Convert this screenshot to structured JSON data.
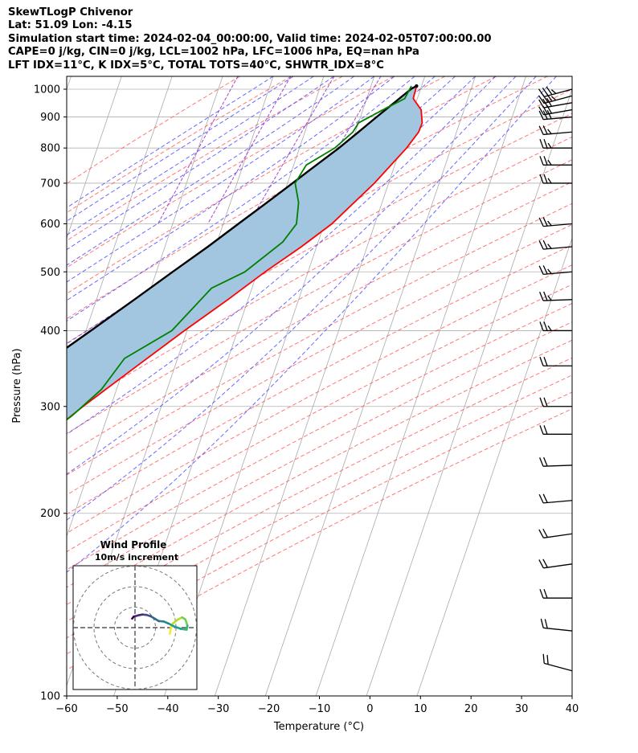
{
  "header": {
    "line1": "SkewTLogP Chivenor",
    "line2": "Lat: 51.09   Lon: -4.15",
    "line3": "Simulation start time: 2024-02-04_00:00:00, Valid time: 2024-02-05T07:00:00.00",
    "line4": "CAPE=0 j/kg, CIN=0 j/kg, LCL=1002 hPa, LFC=1006 hPa, EQ=nan hPa",
    "line5": "LFT IDX=11°C, K IDX=5°C, TOTAL TOTS=40°C, SHWTR_IDX=8°C"
  },
  "chart_data": {
    "type": "line",
    "diagram": "skew-t log-p",
    "xlabel": "Temperature (°C)",
    "ylabel": "Pressure (hPa)",
    "xlim": [
      -60,
      40
    ],
    "ylim": [
      1050,
      100
    ],
    "yscale": "log",
    "x_ticks": [
      -60,
      -50,
      -40,
      -30,
      -20,
      -10,
      0,
      10,
      20,
      30,
      40
    ],
    "x_tick_labels": [
      "−60",
      "−50",
      "−40",
      "−30",
      "−20",
      "−10",
      "0",
      "10",
      "20",
      "30",
      "40"
    ],
    "y_ticks": [
      100,
      200,
      300,
      400,
      500,
      600,
      700,
      800,
      900,
      1000
    ],
    "y_tick_labels": [
      "100",
      "200",
      "300",
      "400",
      "500",
      "600",
      "700",
      "800",
      "900",
      "1000"
    ],
    "colors": {
      "temperature": "#ff0000",
      "dewpoint": "#008000",
      "parcel": "#000000",
      "cape_fill": "#a3c6e0",
      "dry_adiabat": "#ff5555",
      "moist_adiabat": "#4444ff",
      "mixing_ratio": "#9933cc",
      "isotherm": "#aaaaaa"
    },
    "series": [
      {
        "role": "temperature",
        "points": [
          {
            "p": 1012,
            "t": 9.0
          },
          {
            "p": 965,
            "t": 9.2
          },
          {
            "p": 925,
            "t": 11.5
          },
          {
            "p": 880,
            "t": 12.6
          },
          {
            "p": 850,
            "t": 12.5
          },
          {
            "p": 800,
            "t": 11.2
          },
          {
            "p": 700,
            "t": 7.2
          },
          {
            "p": 600,
            "t": 1.5
          },
          {
            "p": 550,
            "t": -3.0
          },
          {
            "p": 500,
            "t": -8.5
          },
          {
            "p": 450,
            "t": -14.0
          },
          {
            "p": 400,
            "t": -20.5
          },
          {
            "p": 350,
            "t": -27.5
          },
          {
            "p": 300,
            "t": -35.5
          },
          {
            "p": 270,
            "t": -40.5
          },
          {
            "p": 250,
            "t": -44.5
          },
          {
            "p": 220,
            "t": -50.0
          },
          {
            "p": 200,
            "t": -53.5
          },
          {
            "p": 180,
            "t": -54.5
          },
          {
            "p": 160,
            "t": -56.0
          },
          {
            "p": 150,
            "t": -56.5
          },
          {
            "p": 140,
            "t": -56.0
          },
          {
            "p": 130,
            "t": -56.3
          },
          {
            "p": 120,
            "t": -56.0
          },
          {
            "p": 110,
            "t": -55.5
          },
          {
            "p": 100,
            "t": -55.7
          }
        ]
      },
      {
        "role": "dewpoint",
        "points": [
          {
            "p": 1012,
            "t": 8.0
          },
          {
            "p": 965,
            "t": 7.5
          },
          {
            "p": 925,
            "t": 4.0
          },
          {
            "p": 880,
            "t": 0.0
          },
          {
            "p": 850,
            "t": -0.5
          },
          {
            "p": 800,
            "t": -3.0
          },
          {
            "p": 750,
            "t": -7.5
          },
          {
            "p": 700,
            "t": -8.5
          },
          {
            "p": 650,
            "t": -6.5
          },
          {
            "p": 600,
            "t": -5.5
          },
          {
            "p": 560,
            "t": -7.0
          },
          {
            "p": 500,
            "t": -12.5
          },
          {
            "p": 470,
            "t": -18.0
          },
          {
            "p": 400,
            "t": -23.0
          },
          {
            "p": 360,
            "t": -30.5
          },
          {
            "p": 320,
            "t": -33.0
          },
          {
            "p": 290,
            "t": -37.0
          },
          {
            "p": 260,
            "t": -42.5
          },
          {
            "p": 230,
            "t": -47.5
          },
          {
            "p": 200,
            "t": -53.5
          },
          {
            "p": 180,
            "t": -56.0
          },
          {
            "p": 160,
            "t": -58.0
          },
          {
            "p": 145,
            "t": -60.5
          },
          {
            "p": 130,
            "t": -64.5
          },
          {
            "p": 120,
            "t": -66.5
          },
          {
            "p": 110,
            "t": -68.5
          },
          {
            "p": 100,
            "t": -71.5
          }
        ]
      },
      {
        "role": "parcel",
        "points": [
          {
            "p": 1012,
            "t": 9.0
          },
          {
            "p": 1002,
            "t": 8.2
          },
          {
            "p": 950,
            "t": 5.7
          },
          {
            "p": 900,
            "t": 3.2
          },
          {
            "p": 850,
            "t": 0.6
          },
          {
            "p": 800,
            "t": -2.2
          },
          {
            "p": 750,
            "t": -5.5
          },
          {
            "p": 700,
            "t": -9.0
          },
          {
            "p": 650,
            "t": -12.8
          },
          {
            "p": 600,
            "t": -17.0
          },
          {
            "p": 550,
            "t": -21.5
          },
          {
            "p": 500,
            "t": -26.8
          },
          {
            "p": 450,
            "t": -32.5
          },
          {
            "p": 400,
            "t": -39.0
          },
          {
            "p": 350,
            "t": -46.5
          },
          {
            "p": 300,
            "t": -55.0
          },
          {
            "p": 250,
            "t": -65.0
          },
          {
            "p": 200,
            "t": -77.0
          },
          {
            "p": 150,
            "t": -92.0
          },
          {
            "p": 125,
            "t": -101.0
          },
          {
            "p": 100,
            "t": -111.0
          }
        ]
      }
    ],
    "wind_barbs": [
      {
        "p": 1000,
        "dir": 255,
        "kt": 35
      },
      {
        "p": 975,
        "dir": 255,
        "kt": 35
      },
      {
        "p": 950,
        "dir": 260,
        "kt": 30
      },
      {
        "p": 925,
        "dir": 260,
        "kt": 30
      },
      {
        "p": 900,
        "dir": 265,
        "kt": 30
      },
      {
        "p": 850,
        "dir": 265,
        "kt": 25
      },
      {
        "p": 800,
        "dir": 270,
        "kt": 25
      },
      {
        "p": 750,
        "dir": 270,
        "kt": 25
      },
      {
        "p": 700,
        "dir": 270,
        "kt": 25
      },
      {
        "p": 600,
        "dir": 265,
        "kt": 25
      },
      {
        "p": 550,
        "dir": 265,
        "kt": 25
      },
      {
        "p": 500,
        "dir": 265,
        "kt": 25
      },
      {
        "p": 450,
        "dir": 268,
        "kt": 25
      },
      {
        "p": 400,
        "dir": 270,
        "kt": 25
      },
      {
        "p": 350,
        "dir": 270,
        "kt": 20
      },
      {
        "p": 300,
        "dir": 270,
        "kt": 20
      },
      {
        "p": 270,
        "dir": 270,
        "kt": 20
      },
      {
        "p": 240,
        "dir": 268,
        "kt": 20
      },
      {
        "p": 210,
        "dir": 265,
        "kt": 20
      },
      {
        "p": 185,
        "dir": 262,
        "kt": 20
      },
      {
        "p": 165,
        "dir": 262,
        "kt": 20
      },
      {
        "p": 145,
        "dir": 270,
        "kt": 20
      },
      {
        "p": 128,
        "dir": 276,
        "kt": 20
      },
      {
        "p": 110,
        "dir": 285,
        "kt": 20
      }
    ],
    "hodograph": {
      "title": "Wind Profile",
      "subtitle": "10m/s increment",
      "ring_spacing_ms": 10,
      "rings": 3,
      "points": [
        {
          "u": 8.5,
          "v": -1.5
        },
        {
          "u": 8.8,
          "v": 0.0
        },
        {
          "u": 9.2,
          "v": 1.0
        },
        {
          "u": 10.5,
          "v": 2.0
        },
        {
          "u": 11.5,
          "v": 2.5
        },
        {
          "u": 12.3,
          "v": 2.0
        },
        {
          "u": 12.8,
          "v": 0.5
        },
        {
          "u": 12.6,
          "v": -0.5
        },
        {
          "u": 11.2,
          "v": -0.3
        },
        {
          "u": 9.5,
          "v": 0.3
        },
        {
          "u": 8.2,
          "v": 1.0
        },
        {
          "u": 7.0,
          "v": 1.5
        },
        {
          "u": 5.8,
          "v": 1.6
        },
        {
          "u": 4.8,
          "v": 2.2
        },
        {
          "u": 3.8,
          "v": 2.8
        },
        {
          "u": 2.8,
          "v": 3.1
        },
        {
          "u": 1.8,
          "v": 3.2
        },
        {
          "u": 0.8,
          "v": 3.0
        },
        {
          "u": -0.3,
          "v": 2.7
        },
        {
          "u": -0.7,
          "v": 2.2
        }
      ]
    }
  }
}
